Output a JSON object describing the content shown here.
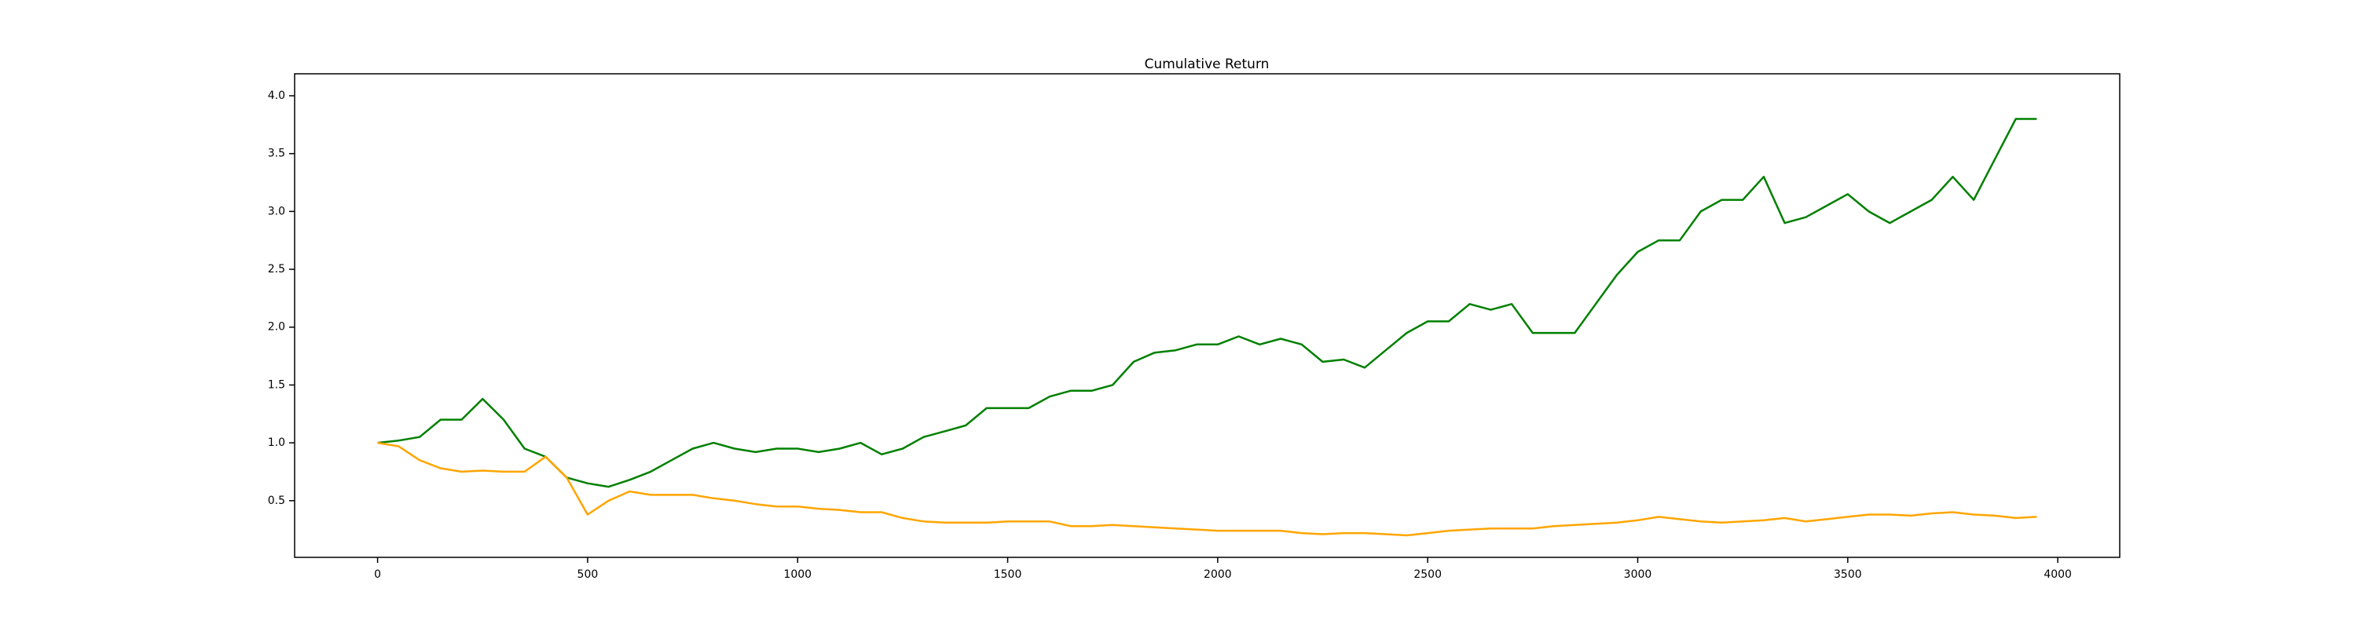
{
  "chart_data": {
    "type": "line",
    "title": "Cumulative Return",
    "x": [
      0,
      50,
      100,
      150,
      200,
      250,
      300,
      350,
      400,
      450,
      500,
      550,
      600,
      650,
      700,
      750,
      800,
      850,
      900,
      950,
      1000,
      1050,
      1100,
      1150,
      1200,
      1250,
      1300,
      1350,
      1400,
      1450,
      1500,
      1550,
      1600,
      1650,
      1700,
      1750,
      1800,
      1850,
      1900,
      1950,
      2000,
      2050,
      2100,
      2150,
      2200,
      2250,
      2300,
      2350,
      2400,
      2450,
      2500,
      2550,
      2600,
      2650,
      2700,
      2750,
      2800,
      2850,
      2900,
      2950,
      3000,
      3050,
      3100,
      3150,
      3200,
      3250,
      3300,
      3350,
      3400,
      3450,
      3500,
      3550,
      3600,
      3650,
      3700,
      3750,
      3800,
      3850,
      3900,
      3950
    ],
    "series": [
      {
        "color": "#008000",
        "values": [
          1.0,
          1.02,
          1.05,
          1.2,
          1.2,
          1.38,
          1.2,
          0.95,
          0.88,
          0.7,
          0.65,
          0.62,
          0.68,
          0.75,
          0.85,
          0.95,
          1.0,
          0.95,
          0.92,
          0.95,
          0.95,
          0.92,
          0.95,
          1.0,
          0.9,
          0.95,
          1.05,
          1.1,
          1.15,
          1.3,
          1.3,
          1.3,
          1.4,
          1.45,
          1.45,
          1.5,
          1.7,
          1.78,
          1.8,
          1.85,
          1.85,
          1.92,
          1.85,
          1.9,
          1.85,
          1.7,
          1.72,
          1.65,
          1.8,
          1.95,
          2.05,
          2.05,
          2.2,
          2.15,
          2.2,
          1.95,
          1.95,
          1.95,
          2.2,
          2.45,
          2.65,
          2.75,
          2.75,
          3.0,
          3.1,
          3.1,
          3.3,
          2.9,
          2.95,
          3.05,
          3.15,
          3.0,
          2.9,
          3.0,
          3.1,
          3.3,
          3.1,
          3.45,
          3.8,
          3.8
        ]
      },
      {
        "color": "#ffa500",
        "values": [
          1.0,
          0.97,
          0.85,
          0.78,
          0.75,
          0.76,
          0.75,
          0.75,
          0.88,
          0.7,
          0.38,
          0.5,
          0.58,
          0.55,
          0.55,
          0.55,
          0.52,
          0.5,
          0.47,
          0.45,
          0.45,
          0.43,
          0.42,
          0.4,
          0.4,
          0.35,
          0.32,
          0.31,
          0.31,
          0.31,
          0.32,
          0.32,
          0.32,
          0.28,
          0.28,
          0.29,
          0.28,
          0.27,
          0.26,
          0.25,
          0.24,
          0.24,
          0.24,
          0.24,
          0.22,
          0.21,
          0.22,
          0.22,
          0.21,
          0.2,
          0.22,
          0.24,
          0.25,
          0.26,
          0.26,
          0.26,
          0.28,
          0.29,
          0.3,
          0.31,
          0.33,
          0.36,
          0.34,
          0.32,
          0.31,
          0.32,
          0.33,
          0.35,
          0.32,
          0.34,
          0.36,
          0.38,
          0.38,
          0.37,
          0.39,
          0.4,
          0.38,
          0.37,
          0.35,
          0.36
        ]
      }
    ],
    "xlim": [
      -197.5,
      4147.5
    ],
    "xticks": [
      0,
      500,
      1000,
      1500,
      2000,
      2500,
      3000,
      3500,
      4000
    ],
    "ylim": [
      0.01,
      4.19
    ],
    "yticks": [
      0.5,
      {
        "value": 1,
        "label": "1.0"
      },
      1.5,
      {
        "value": 2,
        "label": "2.0"
      },
      2.5,
      {
        "value": 3,
        "label": "3.0"
      },
      3.5,
      {
        "value": 4,
        "label": "4.0"
      }
    ],
    "grid": false
  }
}
